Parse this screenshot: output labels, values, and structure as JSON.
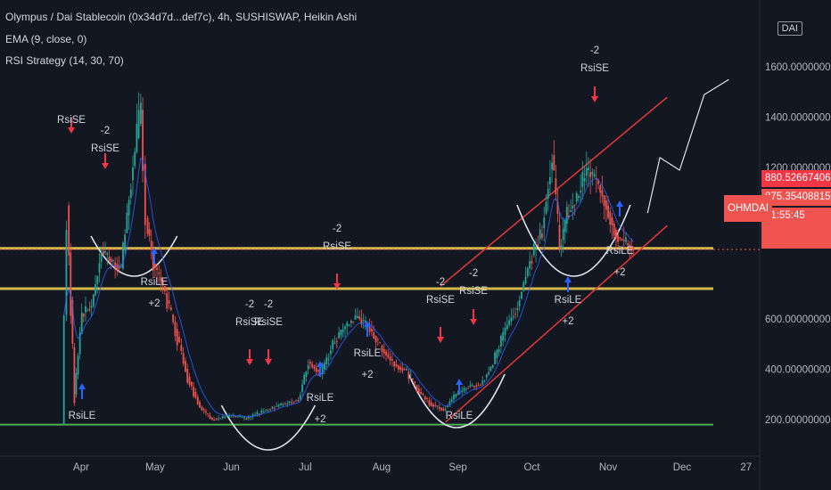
{
  "header": {
    "symbol_line": "Olympus / Dai Stablecoin (0x34d7d...def7c), 4h, SUSHISWAP, Heikin Ashi",
    "indicator_1": "EMA (9, close, 0)",
    "indicator_2": "RSI Strategy (14, 30, 70)",
    "quote_currency": "DAI"
  },
  "price_axis": {
    "ticks": [
      "1600.0000000000",
      "1400.0000000000",
      "1200.0000000000",
      "600.0000000000",
      "400.0000000000",
      "200.0000000000"
    ]
  },
  "time_axis": {
    "ticks": [
      "Apr",
      "May",
      "Jun",
      "Jul",
      "Aug",
      "Sep",
      "Oct",
      "Nov",
      "Dec",
      "27"
    ]
  },
  "price_tags": {
    "ema_value": "880.5266740671",
    "last_price": "875.3540881532",
    "countdown": "01:55:45",
    "symbol_tag": "OHMDAI"
  },
  "colors": {
    "background": "#131722",
    "up_candle": "#26a69a",
    "down_candle": "#ef5350",
    "ema_line": "#2962ff",
    "horizontal_level": "#d4b84a",
    "support_level": "#4caf50",
    "channel": "#e53935",
    "buy_arrow": "#2962ff",
    "sell_arrow": "#f23645",
    "text": "#d1d4dc"
  },
  "signals": [
    {
      "type": "sell",
      "label": "RsiSE",
      "qty": "",
      "x": "Mar 27"
    },
    {
      "type": "sell",
      "label": "RsiSE",
      "qty": "-2",
      "x": "Apr 10"
    },
    {
      "type": "buy",
      "label": "RsiLE",
      "qty": "",
      "x": "Mar 28"
    },
    {
      "type": "buy",
      "label": "RsiLE",
      "qty": "+2",
      "x": "May 1"
    },
    {
      "type": "sell",
      "label": "RsiSE",
      "qty": "-2",
      "x": "Jun 10"
    },
    {
      "type": "sell",
      "label": "RsiSE",
      "qty": "-2",
      "x": "Jun 16"
    },
    {
      "type": "buy",
      "label": "RsiLE",
      "qty": "+2",
      "x": "Jul 5"
    },
    {
      "type": "sell",
      "label": "RsiSE",
      "qty": "-2",
      "x": "Jul 18"
    },
    {
      "type": "buy",
      "label": "RsiLE",
      "qty": "+2",
      "x": "Jul 30"
    },
    {
      "type": "sell",
      "label": "RsiSE",
      "qty": "-2",
      "x": "Aug 23"
    },
    {
      "type": "sell",
      "label": "RsiSE",
      "qty": "-2",
      "x": "Sep 8"
    },
    {
      "type": "buy",
      "label": "RsiLE",
      "qty": "",
      "x": "Sep 1"
    },
    {
      "type": "buy",
      "label": "RsiLE",
      "qty": "+2",
      "x": "Oct 15"
    },
    {
      "type": "sell",
      "label": "RsiSE",
      "qty": "-2",
      "x": "Oct 28"
    },
    {
      "type": "buy",
      "label": "RsiLE",
      "qty": "+2",
      "x": "Nov 5"
    }
  ],
  "chart_data": {
    "type": "candlestick",
    "chart_style": "Heikin Ashi",
    "interval": "4h",
    "title": "Olympus / Dai Stablecoin (0x34d7d...def7c), 4h, SUSHISWAP, Heikin Ashi",
    "ylabel": "DAI",
    "ylim": [
      100,
      1640
    ],
    "grid": false,
    "price_series": {
      "name": "OHMDAI",
      "dates": [
        "Mar 25",
        "Mar 27",
        "Mar 30",
        "Apr 2",
        "Apr 6",
        "Apr 10",
        "Apr 14",
        "Apr 18",
        "Apr 22",
        "Apr 26",
        "Apr 28",
        "May 1",
        "May 5",
        "May 10",
        "May 15",
        "May 20",
        "May 25",
        "Jun 1",
        "Jun 8",
        "Jun 15",
        "Jun 22",
        "Jun 29",
        "Jul 3",
        "Jul 8",
        "Jul 13",
        "Jul 18",
        "Jul 23",
        "Jul 28",
        "Aug 2",
        "Aug 7",
        "Aug 12",
        "Aug 17",
        "Aug 22",
        "Aug 27",
        "Sep 1",
        "Sep 6",
        "Sep 11",
        "Sep 16",
        "Sep 21",
        "Sep 26",
        "Oct 1",
        "Oct 6",
        "Oct 10",
        "Oct 13",
        "Oct 16",
        "Oct 20",
        "Oct 24",
        "Oct 28",
        "Nov 1",
        "Nov 5",
        "Nov 9",
        "Nov 12"
      ],
      "values": [
        180,
        1050,
        300,
        620,
        650,
        870,
        830,
        800,
        1150,
        1430,
        1000,
        820,
        730,
        560,
        370,
        250,
        200,
        215,
        205,
        235,
        260,
        280,
        430,
        380,
        500,
        570,
        610,
        560,
        480,
        420,
        390,
        310,
        260,
        240,
        300,
        330,
        340,
        420,
        560,
        650,
        830,
        960,
        1250,
        880,
        1010,
        1080,
        1190,
        1150,
        1050,
        930,
        900,
        875
      ]
    },
    "horizontal_levels": [
      {
        "price": 880,
        "color": "yellow"
      },
      {
        "price": 720,
        "color": "yellow"
      },
      {
        "price": 180,
        "color": "green"
      }
    ],
    "channel": {
      "upper": [
        {
          "date": "Aug 25",
          "price": 730
        },
        {
          "date": "Nov 25",
          "price": 1480
        }
      ],
      "lower": [
        {
          "date": "Aug 27",
          "price": 190
        },
        {
          "date": "Nov 25",
          "price": 970
        }
      ]
    },
    "projection": [
      {
        "date": "Nov 17",
        "price": 1020
      },
      {
        "date": "Nov 22",
        "price": 1240
      },
      {
        "date": "Nov 30",
        "price": 1190
      },
      {
        "date": "Dec 10",
        "price": 1490
      },
      {
        "date": "Dec 20",
        "price": 1550
      }
    ],
    "last_price": 875.3540881532,
    "ema_value": 880.5266740671
  }
}
